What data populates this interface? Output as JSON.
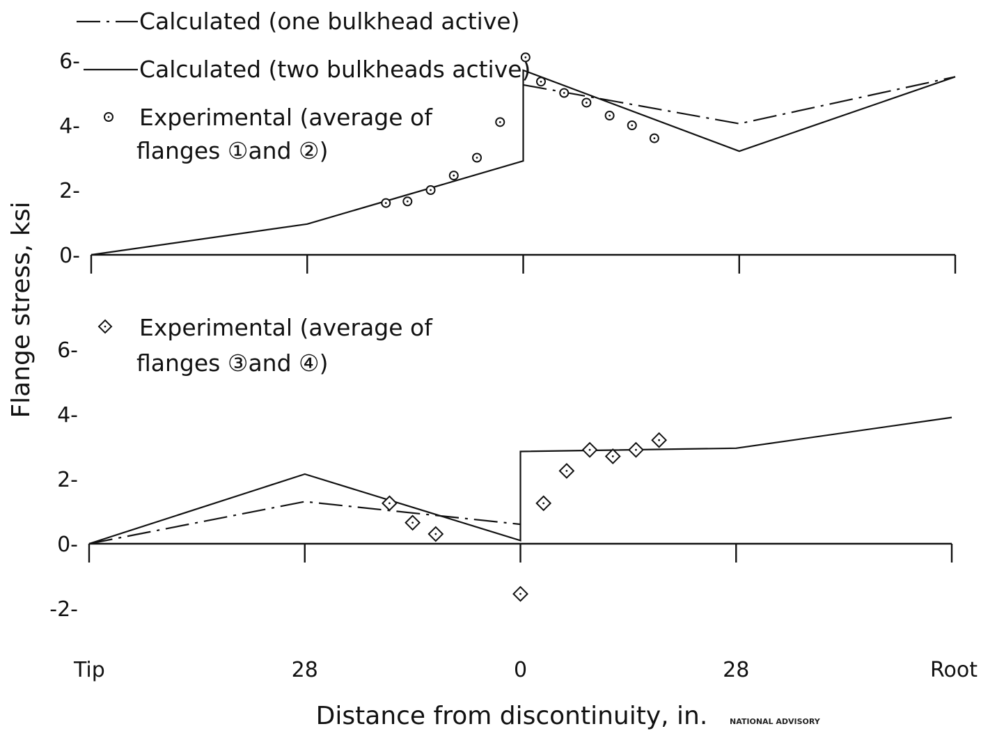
{
  "chart_data": {
    "type": "line",
    "xlabel": "Distance from discontinuity, in.",
    "ylabel": "Flange stress, ksi",
    "x_tick_labels": [
      "Tip",
      "28",
      "0",
      "28",
      "Root"
    ],
    "x_tick_positions": [
      -56,
      -28,
      0,
      28,
      56
    ],
    "legend": {
      "calc_one": "Calculated (one bulkhead active)",
      "calc_two": "Calculated (two bulkheads active)",
      "exp_upper_line1": "Experimental (average of",
      "exp_upper_line2": "flanges ①and ②)",
      "exp_lower_line1": "Experimental (average of",
      "exp_lower_line2": "flanges ③and ④)"
    },
    "panels": [
      {
        "id": "upper",
        "ylim": [
          0,
          6
        ],
        "y_ticks": [
          0,
          2,
          4,
          6
        ],
        "y_tick_labels": [
          "0-",
          "2-",
          "4-",
          "6-"
        ],
        "series": [
          {
            "key": "calc_two",
            "style": "solid",
            "points": [
              [
                -56,
                0
              ],
              [
                -28,
                0.95
              ],
              [
                0,
                2.9
              ],
              [
                0,
                5.7
              ],
              [
                28,
                3.2
              ],
              [
                56,
                5.5
              ]
            ]
          },
          {
            "key": "calc_one",
            "style": "dash-dot",
            "points": [
              [
                0,
                5.25
              ],
              [
                28,
                4.05
              ],
              [
                56,
                5.5
              ]
            ]
          },
          {
            "key": "exp",
            "marker": "circle",
            "points": [
              [
                -17.8,
                1.6
              ],
              [
                -15,
                1.65
              ],
              [
                -12,
                2.0
              ],
              [
                -9,
                2.45
              ],
              [
                -6,
                3.0
              ],
              [
                -3,
                4.1
              ],
              [
                0.3,
                6.1
              ],
              [
                2.3,
                5.35
              ],
              [
                5.3,
                5.0
              ],
              [
                8.2,
                4.7
              ],
              [
                11.2,
                4.3
              ],
              [
                14.1,
                4.0
              ],
              [
                17,
                3.6
              ]
            ]
          }
        ]
      },
      {
        "id": "lower",
        "ylim": [
          -2,
          6
        ],
        "y_ticks": [
          -2,
          0,
          2,
          4,
          6
        ],
        "y_tick_labels": [
          "-2-",
          "0-",
          "2-",
          "4-",
          "6-"
        ],
        "series": [
          {
            "key": "calc_two",
            "style": "solid",
            "points": [
              [
                -56,
                0
              ],
              [
                -28,
                2.15
              ],
              [
                0,
                0.1
              ],
              [
                0,
                2.85
              ],
              [
                28,
                2.95
              ],
              [
                56,
                3.9
              ]
            ]
          },
          {
            "key": "calc_one",
            "style": "dash-dot",
            "points": [
              [
                -56,
                0
              ],
              [
                -28,
                1.3
              ],
              [
                0,
                0.6
              ]
            ]
          },
          {
            "key": "exp",
            "marker": "diamond",
            "points": [
              [
                -17,
                1.25
              ],
              [
                -14,
                0.65
              ],
              [
                -11,
                0.3
              ],
              [
                0,
                -1.55
              ],
              [
                3,
                1.25
              ],
              [
                6,
                2.25
              ],
              [
                9,
                2.9
              ],
              [
                12,
                2.7
              ],
              [
                15,
                2.9
              ],
              [
                18,
                3.2
              ]
            ]
          }
        ]
      }
    ],
    "footer_note": "NATIONAL ADVISORY"
  }
}
